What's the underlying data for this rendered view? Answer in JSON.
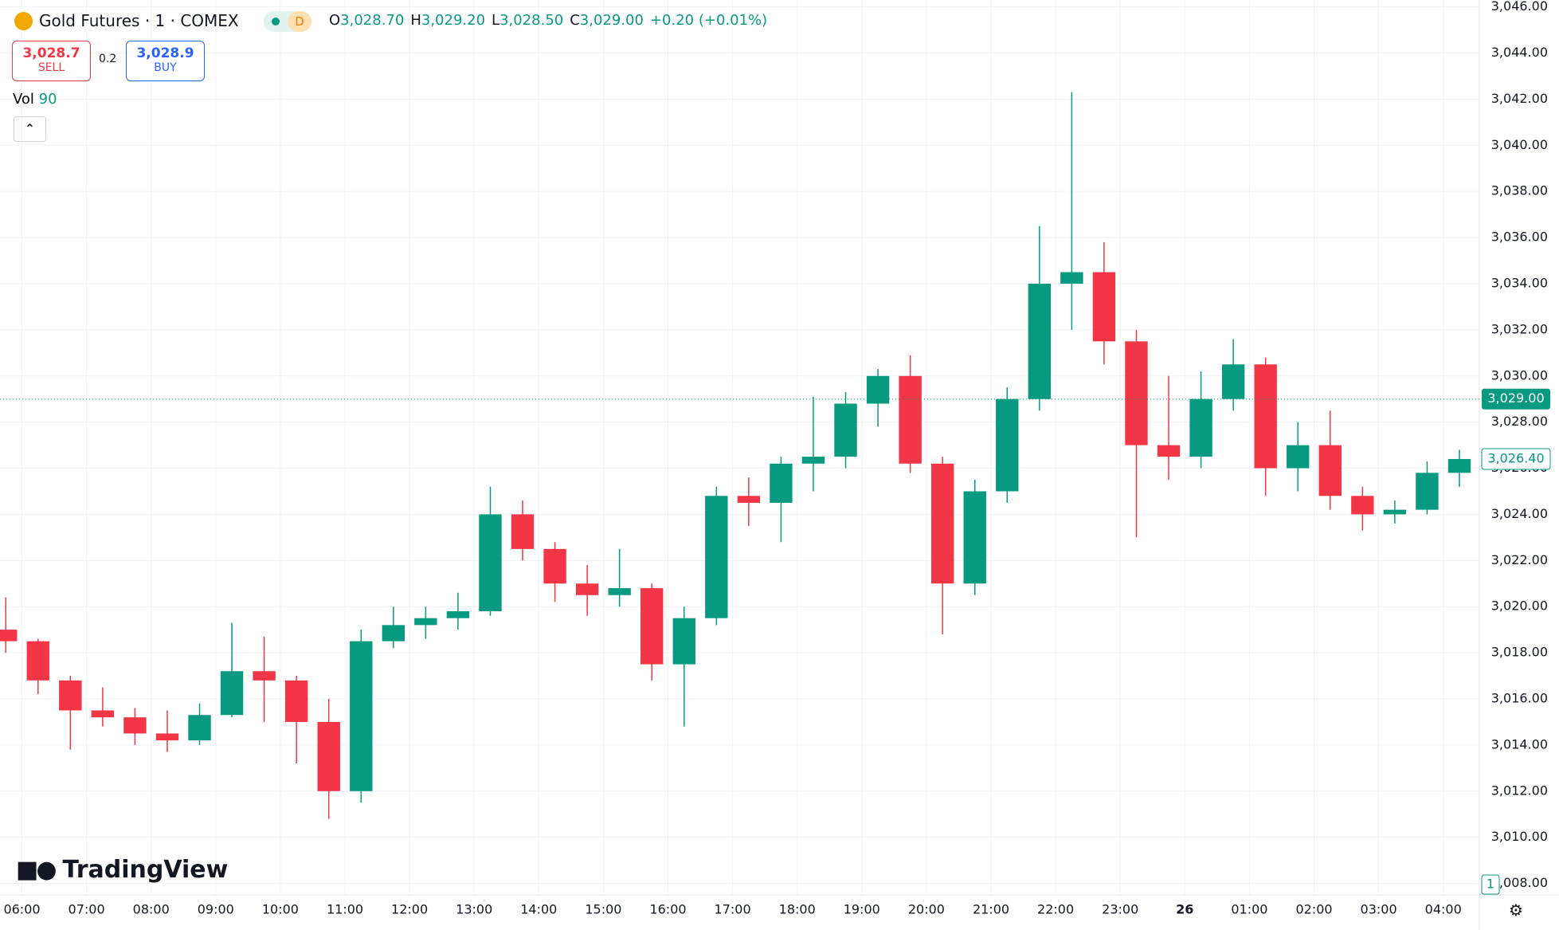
{
  "header": {
    "symbol": "Gold Futures · 1 · COMEX",
    "badge": "D",
    "ohlc": [
      {
        "letter": "O",
        "value": "3,028.70"
      },
      {
        "letter": "H",
        "value": "3,029.20"
      },
      {
        "letter": "L",
        "value": "3,028.50"
      },
      {
        "letter": "C",
        "value": "3,029.00"
      }
    ],
    "change": "+0.20 (+0.01%)",
    "sell": {
      "price": "3,028.7",
      "label": "SELL"
    },
    "spread": "0.2",
    "buy": {
      "price": "3,028.9",
      "label": "BUY"
    },
    "volume_label": "Vol",
    "volume": 90,
    "logo": "TradingView"
  },
  "chart_data": {
    "type": "candlestick",
    "up_color": "#089981",
    "down_color": "#f23645",
    "x": [
      "05:30",
      "06:00",
      "06:30",
      "07:00",
      "07:30",
      "08:00",
      "08:30",
      "09:00",
      "09:30",
      "10:00",
      "10:30",
      "11:00",
      "11:30",
      "12:00",
      "12:30",
      "13:00",
      "13:30",
      "14:00",
      "14:30",
      "15:00",
      "15:30",
      "16:00",
      "16:30",
      "17:00",
      "17:30",
      "18:00",
      "18:30",
      "19:00",
      "19:30",
      "20:00",
      "20:30",
      "21:00",
      "21:30",
      "22:00",
      "22:30",
      "23:00",
      "23:30",
      "00:00",
      "00:30",
      "01:00",
      "01:30",
      "02:00",
      "02:30",
      "03:00",
      "03:30",
      "04:00"
    ],
    "open": [
      3019.0,
      3018.5,
      3016.8,
      3015.5,
      3015.2,
      3014.5,
      3014.2,
      3015.3,
      3017.2,
      3016.8,
      3015.0,
      3012.0,
      3018.5,
      3019.2,
      3019.5,
      3019.8,
      3024.0,
      3022.5,
      3021.0,
      3020.5,
      3020.8,
      3017.5,
      3019.5,
      3024.8,
      3024.5,
      3026.2,
      3026.5,
      3028.8,
      3030.0,
      3026.2,
      3021.0,
      3025.0,
      3029.0,
      3034.0,
      3034.5,
      3031.5,
      3027.0,
      3026.5,
      3029.0,
      3030.5,
      3026.0,
      3027.0,
      3024.8,
      3024.0,
      3024.2,
      3025.8
    ],
    "high": [
      3020.4,
      3018.6,
      3017.0,
      3016.5,
      3015.6,
      3015.5,
      3015.8,
      3019.3,
      3018.7,
      3017.0,
      3016.0,
      3019.0,
      3020.0,
      3020.0,
      3020.6,
      3025.2,
      3024.6,
      3022.8,
      3021.8,
      3022.5,
      3021.0,
      3020.0,
      3025.2,
      3025.6,
      3026.5,
      3029.1,
      3029.3,
      3030.3,
      3030.9,
      3026.5,
      3025.5,
      3029.5,
      3036.5,
      3042.3,
      3035.8,
      3032.0,
      3030.0,
      3030.2,
      3031.6,
      3030.8,
      3028.0,
      3028.5,
      3025.2,
      3024.6,
      3026.3,
      3026.8
    ],
    "low": [
      3018.0,
      3016.2,
      3013.8,
      3014.8,
      3014.0,
      3013.7,
      3014.0,
      3015.2,
      3015.0,
      3013.2,
      3010.8,
      3011.5,
      3018.2,
      3018.6,
      3019.0,
      3019.6,
      3022.0,
      3020.2,
      3019.6,
      3020.0,
      3016.8,
      3014.8,
      3019.2,
      3023.5,
      3022.8,
      3025.0,
      3026.0,
      3027.8,
      3025.8,
      3018.8,
      3020.5,
      3024.5,
      3028.5,
      3032.0,
      3030.5,
      3023.0,
      3025.5,
      3026.0,
      3028.5,
      3024.8,
      3025.0,
      3024.2,
      3023.3,
      3023.6,
      3024.0,
      3025.2
    ],
    "close": [
      3018.5,
      3016.8,
      3015.5,
      3015.2,
      3014.5,
      3014.2,
      3015.3,
      3017.2,
      3016.8,
      3015.0,
      3012.0,
      3018.5,
      3019.2,
      3019.5,
      3019.8,
      3024.0,
      3022.5,
      3021.0,
      3020.5,
      3020.8,
      3017.5,
      3019.5,
      3024.8,
      3024.5,
      3026.2,
      3026.5,
      3028.8,
      3030.0,
      3026.2,
      3021.0,
      3025.0,
      3029.0,
      3034.0,
      3034.5,
      3031.5,
      3027.0,
      3026.5,
      3029.0,
      3030.5,
      3026.0,
      3027.0,
      3024.8,
      3024.0,
      3024.2,
      3025.8,
      3026.4
    ],
    "ylim": [
      3007.5,
      3046.3
    ],
    "yticks": [
      {
        "value": 3008,
        "label": "3,008.00"
      },
      {
        "value": 3010,
        "label": "3,010.00"
      },
      {
        "value": 3012,
        "label": "3,012.00"
      },
      {
        "value": 3014,
        "label": "3,014.00"
      },
      {
        "value": 3016,
        "label": "3,016.00"
      },
      {
        "value": 3018,
        "label": "3,018.00"
      },
      {
        "value": 3020,
        "label": "3,020.00"
      },
      {
        "value": 3022,
        "label": "3,022.00"
      },
      {
        "value": 3024,
        "label": "3,024.00"
      },
      {
        "value": 3026,
        "label": "3,026.00"
      },
      {
        "value": 3028,
        "label": "3,028.00"
      },
      {
        "value": 3030,
        "label": "3,030.00"
      },
      {
        "value": 3032,
        "label": "3,032.00"
      },
      {
        "value": 3034,
        "label": "3,034.00"
      },
      {
        "value": 3036,
        "label": "3,036.00"
      },
      {
        "value": 3038,
        "label": "3,038.00"
      },
      {
        "value": 3040,
        "label": "3,040.00"
      },
      {
        "value": 3042,
        "label": "3,042.00"
      },
      {
        "value": 3044,
        "label": "3,044.00"
      },
      {
        "value": 3046,
        "label": "3,046.00"
      }
    ],
    "xticks": [
      "06:00",
      "07:00",
      "08:00",
      "09:00",
      "10:00",
      "11:00",
      "12:00",
      "13:00",
      "14:00",
      "15:00",
      "16:00",
      "17:00",
      "18:00",
      "19:00",
      "20:00",
      "21:00",
      "22:00",
      "23:00",
      {
        "value": "00:00",
        "label": "26"
      },
      "01:00",
      "02:00",
      "03:00",
      "04:00"
    ],
    "price_labels": [
      {
        "value": 3029.0,
        "label": "3,029.00"
      },
      {
        "value": 3026.4,
        "label": "3,026.40"
      }
    ],
    "volume_axis_label": 1,
    "grid": true
  }
}
